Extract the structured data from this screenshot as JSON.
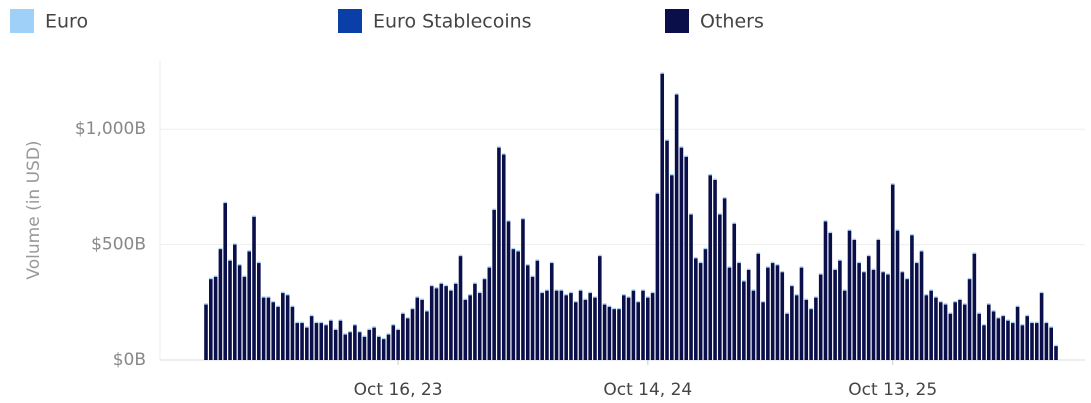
{
  "chart_data": {
    "type": "stacked_bar",
    "y_label": "Volume (in USD)",
    "categories": [
      null,
      null,
      null,
      null,
      null,
      null,
      null,
      null,
      null,
      null,
      null,
      null,
      null,
      null,
      null,
      null,
      null,
      null,
      null,
      null,
      null,
      null,
      null,
      null,
      null,
      null,
      null,
      null,
      null,
      null,
      null,
      null,
      null,
      null,
      null,
      null,
      null,
      null,
      null,
      null,
      "Oct 16, 23",
      null,
      null,
      null,
      null,
      null,
      null,
      null,
      null,
      null,
      null,
      null,
      null,
      null,
      null,
      null,
      null,
      null,
      null,
      null,
      null,
      null,
      null,
      null,
      null,
      null,
      null,
      null,
      null,
      null,
      null,
      null,
      null,
      null,
      null,
      null,
      null,
      null,
      null,
      null,
      null,
      null,
      null,
      null,
      null,
      null,
      null,
      null,
      null,
      null,
      null,
      null,
      "Oct 14, 24",
      null,
      null,
      null,
      null,
      null,
      null,
      null,
      null,
      null,
      null,
      null,
      null,
      null,
      null,
      null,
      null,
      null,
      null,
      null,
      null,
      null,
      null,
      null,
      null,
      null,
      null,
      null,
      null,
      null,
      null,
      null,
      null,
      null,
      null,
      null,
      null,
      null,
      null,
      null,
      null,
      null,
      null,
      null,
      null,
      null,
      null,
      null,
      null,
      null,
      null,
      "Oct 13, 25",
      null,
      null,
      null,
      null,
      null,
      null,
      null,
      null,
      null,
      null,
      null,
      null,
      null,
      null,
      null,
      null,
      null,
      null,
      null,
      null,
      null,
      null,
      null,
      null,
      null,
      null,
      null,
      null,
      null,
      null,
      null,
      null,
      null,
      null
    ],
    "series": [
      {
        "name": "Others",
        "color": "#0a0f4a",
        "values": [
          240,
          350,
          360,
          480,
          680,
          430,
          500,
          410,
          360,
          470,
          620,
          420,
          270,
          270,
          250,
          230,
          290,
          280,
          230,
          160,
          160,
          140,
          190,
          160,
          160,
          150,
          170,
          130,
          170,
          110,
          120,
          150,
          120,
          100,
          130,
          140,
          100,
          90,
          110,
          150,
          130,
          200,
          180,
          220,
          270,
          260,
          210,
          320,
          310,
          330,
          320,
          300,
          330,
          450,
          260,
          280,
          330,
          290,
          350,
          400,
          650,
          920,
          890,
          600,
          480,
          470,
          610,
          410,
          360,
          430,
          290,
          300,
          420,
          300,
          300,
          280,
          290,
          250,
          300,
          260,
          290,
          270,
          450,
          240,
          230,
          220,
          220,
          280,
          270,
          300,
          250,
          300,
          270,
          290,
          720,
          1240,
          950,
          800,
          1150,
          920,
          880,
          630,
          440,
          420,
          480,
          800,
          780,
          630,
          700,
          400,
          590,
          420,
          340,
          390,
          300,
          460,
          250,
          400,
          420,
          410,
          380,
          200,
          320,
          280,
          400,
          260,
          220,
          270,
          370,
          600,
          550,
          390,
          430,
          300,
          560,
          520,
          420,
          380,
          450,
          390,
          520,
          380,
          370,
          760,
          560,
          380,
          350,
          540,
          420,
          470,
          280,
          300,
          270,
          250,
          240,
          200,
          250,
          260,
          240,
          350,
          460,
          200,
          150,
          240,
          210,
          180,
          190,
          170,
          160,
          230,
          150,
          190,
          160,
          160,
          290,
          160,
          140,
          60
        ]
      },
      {
        "name": "Euro Stablecoins",
        "color": "#0a3fa8",
        "values": [
          1,
          1,
          1,
          1,
          1,
          1,
          1,
          1,
          1,
          1,
          1,
          1,
          1,
          1,
          1,
          1,
          1,
          1,
          1,
          1,
          1,
          1,
          1,
          1,
          1,
          1,
          1,
          1,
          1,
          1,
          1,
          1,
          1,
          1,
          1,
          1,
          1,
          1,
          1,
          1,
          1,
          1,
          1,
          1,
          1,
          1,
          1,
          1,
          1,
          1,
          1,
          1,
          1,
          1,
          1,
          1,
          1,
          1,
          1,
          1,
          1,
          1,
          1,
          1,
          1,
          1,
          1,
          1,
          1,
          1,
          1,
          1,
          1,
          1,
          1,
          1,
          1,
          1,
          1,
          1,
          1,
          1,
          1,
          1,
          1,
          1,
          1,
          1,
          1,
          1,
          1,
          1,
          1,
          1,
          1,
          1,
          1,
          1,
          1,
          1,
          1,
          1,
          1,
          1,
          1,
          1,
          1,
          1,
          1,
          1,
          1,
          1,
          1,
          1,
          1,
          1,
          1,
          1,
          1,
          1,
          1,
          1,
          1,
          1,
          1,
          1,
          1,
          1,
          1,
          1,
          1,
          1,
          1,
          1,
          1,
          1,
          1,
          1,
          1,
          1,
          1,
          1,
          1,
          1,
          1,
          1,
          1,
          1,
          1,
          1,
          1,
          1,
          1,
          1,
          1,
          1,
          1,
          1,
          1,
          1,
          1,
          1,
          1,
          1,
          1,
          1,
          1,
          1,
          1,
          1,
          1,
          1,
          1,
          1,
          1,
          1,
          1,
          1
        ]
      },
      {
        "name": "Euro",
        "color": "#9fd0f7",
        "values": [
          5,
          5,
          5,
          5,
          5,
          5,
          5,
          5,
          5,
          5,
          5,
          5,
          5,
          5,
          5,
          5,
          5,
          5,
          5,
          5,
          5,
          5,
          5,
          5,
          5,
          5,
          5,
          5,
          5,
          5,
          5,
          5,
          5,
          5,
          5,
          5,
          5,
          5,
          5,
          5,
          5,
          5,
          5,
          5,
          5,
          5,
          5,
          5,
          5,
          5,
          5,
          5,
          5,
          5,
          5,
          5,
          5,
          5,
          5,
          5,
          5,
          5,
          5,
          5,
          5,
          5,
          5,
          5,
          5,
          5,
          5,
          5,
          5,
          5,
          5,
          5,
          5,
          5,
          5,
          5,
          5,
          5,
          5,
          5,
          5,
          5,
          5,
          5,
          5,
          5,
          5,
          5,
          5,
          5,
          5,
          5,
          5,
          5,
          5,
          5,
          5,
          5,
          5,
          5,
          5,
          5,
          5,
          5,
          5,
          5,
          5,
          5,
          5,
          5,
          5,
          5,
          5,
          5,
          5,
          5,
          5,
          5,
          5,
          5,
          5,
          5,
          5,
          5,
          5,
          5,
          5,
          5,
          5,
          5,
          5,
          5,
          5,
          5,
          5,
          5,
          5,
          5,
          5,
          5,
          5,
          5,
          5,
          5,
          5,
          5,
          5,
          5,
          5,
          5,
          5,
          5,
          5,
          5,
          5,
          5,
          5,
          5,
          5,
          5,
          5,
          5,
          5,
          5,
          5,
          5,
          5,
          5,
          5,
          5,
          5,
          5,
          5,
          5
        ]
      }
    ],
    "legend_order": [
      "Euro",
      "Euro Stablecoins",
      "Others"
    ],
    "ylim": [
      0,
      1300
    ],
    "yticks": [
      {
        "value": 0,
        "label": "$0B"
      },
      {
        "value": 500,
        "label": "$500B"
      },
      {
        "value": 1000,
        "label": "$1,000B"
      }
    ],
    "grid": true
  }
}
